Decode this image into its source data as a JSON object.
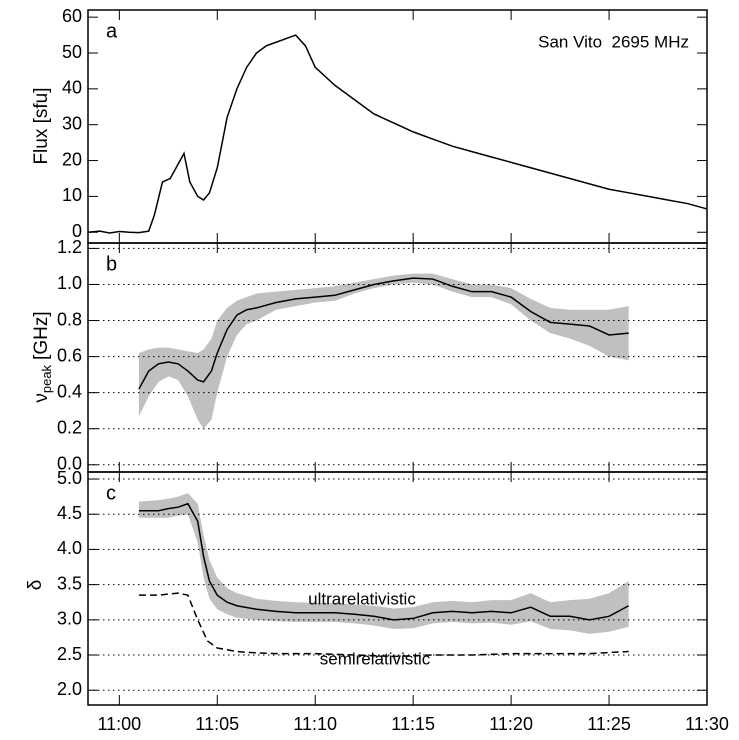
{
  "chart_data": [
    {
      "type": "line",
      "label": "a",
      "annotation": "San Vito  2695 MHz",
      "ylabel": "Flux [sfu]",
      "xlim": [
        658.4,
        690
      ],
      "xticks": [
        {
          "value": 660,
          "label": "11:00"
        },
        {
          "value": 665,
          "label": "11:05"
        },
        {
          "value": 670,
          "label": "11:10"
        },
        {
          "value": 675,
          "label": "11:15"
        },
        {
          "value": 680,
          "label": "11:20"
        },
        {
          "value": 685,
          "label": "11:25"
        },
        {
          "value": 690,
          "label": "11:30"
        }
      ],
      "ylim": [
        -3,
        62
      ],
      "yticks": [
        0,
        10,
        20,
        30,
        40,
        50,
        60
      ],
      "grid": false,
      "series": [
        {
          "color": "#000000",
          "x": [
            658.4,
            659,
            659.5,
            660,
            660.5,
            661,
            661.5,
            661.8,
            662.2,
            662.6,
            663,
            663.3,
            663.6,
            664,
            664.3,
            664.6,
            665,
            665.5,
            666,
            666.5,
            667,
            667.5,
            668,
            668.5,
            669,
            669.5,
            670,
            671,
            672,
            673,
            674,
            675,
            676,
            677,
            678,
            679,
            680,
            681,
            682,
            683,
            684,
            685,
            686,
            687,
            688,
            689,
            690
          ],
          "values": [
            0,
            0.3,
            -0.2,
            0.2,
            0,
            -0.1,
            0.3,
            5,
            14,
            15,
            19,
            22,
            14,
            10,
            9,
            11,
            18,
            32,
            40,
            46,
            50,
            52,
            53,
            54,
            55,
            52,
            46,
            41,
            37,
            33,
            30.5,
            28,
            26,
            24,
            22.5,
            21,
            19.5,
            18,
            16.5,
            15,
            13.5,
            12,
            11,
            10,
            9,
            8,
            6.5
          ]
        }
      ]
    },
    {
      "type": "line",
      "label": "b",
      "ylabel": "ν",
      "ylabel_sub": "peak",
      "ylabel_unit": "[GHz]",
      "xlim": [
        658.4,
        690
      ],
      "xticks": [
        {
          "value": 660,
          "label": "11:00"
        },
        {
          "value": 665,
          "label": "11:05"
        },
        {
          "value": 670,
          "label": "11:10"
        },
        {
          "value": 675,
          "label": "11:15"
        },
        {
          "value": 680,
          "label": "11:20"
        },
        {
          "value": 685,
          "label": "11:25"
        },
        {
          "value": 690,
          "label": "11:30"
        }
      ],
      "ylim": [
        -0.04,
        1.23
      ],
      "yticks": [
        {
          "value": 0,
          "label": "0.0"
        },
        0.2,
        0.4,
        0.6,
        0.8,
        {
          "value": 1,
          "label": "1.0"
        },
        1.2
      ],
      "grid": true,
      "band_color": "#c0c0c0",
      "series": [
        {
          "color": "#000000",
          "x": [
            661,
            661.5,
            662,
            662.5,
            663,
            663.5,
            664,
            664.3,
            664.7,
            665,
            665.5,
            666,
            666.5,
            667,
            668,
            669,
            670,
            671,
            672,
            673,
            674,
            675,
            676,
            677,
            678,
            679,
            680,
            681,
            682,
            683,
            684,
            685,
            686
          ],
          "values": [
            0.42,
            0.52,
            0.56,
            0.57,
            0.56,
            0.52,
            0.47,
            0.46,
            0.52,
            0.62,
            0.75,
            0.83,
            0.86,
            0.87,
            0.9,
            0.92,
            0.93,
            0.94,
            0.97,
            1.0,
            1.02,
            1.035,
            1.03,
            0.99,
            0.96,
            0.96,
            0.93,
            0.85,
            0.79,
            0.78,
            0.77,
            0.72,
            0.73
          ],
          "lower": [
            0.27,
            0.38,
            0.46,
            0.49,
            0.47,
            0.38,
            0.25,
            0.2,
            0.25,
            0.4,
            0.6,
            0.72,
            0.78,
            0.8,
            0.86,
            0.88,
            0.9,
            0.91,
            0.95,
            0.98,
            1.0,
            1.01,
            1.0,
            0.96,
            0.93,
            0.93,
            0.89,
            0.8,
            0.73,
            0.7,
            0.66,
            0.6,
            0.58
          ],
          "upper": [
            0.62,
            0.64,
            0.65,
            0.65,
            0.64,
            0.63,
            0.62,
            0.64,
            0.7,
            0.8,
            0.87,
            0.91,
            0.93,
            0.95,
            0.96,
            0.97,
            0.98,
            0.99,
            1.01,
            1.03,
            1.05,
            1.06,
            1.06,
            1.03,
            1.0,
            1.0,
            0.98,
            0.92,
            0.87,
            0.86,
            0.86,
            0.86,
            0.88
          ]
        }
      ]
    },
    {
      "type": "line",
      "label": "c",
      "ylabel": "δ",
      "xlim": [
        658.4,
        690
      ],
      "xticks": [
        {
          "value": 660,
          "label": "11:00"
        },
        {
          "value": 665,
          "label": "11:05"
        },
        {
          "value": 670,
          "label": "11:10"
        },
        {
          "value": 675,
          "label": "11:15"
        },
        {
          "value": 680,
          "label": "11:20"
        },
        {
          "value": 685,
          "label": "11:25"
        },
        {
          "value": 690,
          "label": "11:30"
        }
      ],
      "ylim": [
        1.79,
        5.1
      ],
      "yticks": [
        {
          "value": 2,
          "label": "2.0"
        },
        2.5,
        {
          "value": 3,
          "label": "3.0"
        },
        3.5,
        {
          "value": 4,
          "label": "4.0"
        },
        4.5,
        {
          "value": 5,
          "label": "5.0"
        }
      ],
      "grid": true,
      "band_color": "#c0c0c0",
      "series": [
        {
          "name": "ultrarelativistic",
          "color": "#000000",
          "dash": false,
          "x": [
            661,
            662,
            662.5,
            663,
            663.5,
            664,
            664.3,
            664.6,
            665,
            665.5,
            666,
            667,
            668,
            669,
            670,
            671,
            672,
            673,
            674,
            675,
            676,
            677,
            678,
            679,
            680,
            681,
            682,
            683,
            684,
            685,
            686
          ],
          "values": [
            4.55,
            4.55,
            4.58,
            4.6,
            4.65,
            4.4,
            3.9,
            3.55,
            3.35,
            3.25,
            3.2,
            3.15,
            3.12,
            3.1,
            3.1,
            3.1,
            3.08,
            3.05,
            3.0,
            3.02,
            3.1,
            3.12,
            3.1,
            3.12,
            3.1,
            3.18,
            3.05,
            3.05,
            3.0,
            3.05,
            3.2
          ],
          "lower": [
            4.45,
            4.45,
            4.45,
            4.48,
            4.5,
            4.1,
            3.6,
            3.3,
            3.15,
            3.08,
            3.03,
            3.0,
            2.98,
            2.97,
            2.97,
            2.97,
            2.95,
            2.92,
            2.87,
            2.88,
            2.95,
            2.97,
            2.95,
            2.96,
            2.93,
            2.98,
            2.87,
            2.85,
            2.8,
            2.83,
            2.9
          ],
          "upper": [
            4.68,
            4.7,
            4.72,
            4.75,
            4.8,
            4.65,
            4.2,
            3.85,
            3.6,
            3.45,
            3.38,
            3.3,
            3.27,
            3.25,
            3.24,
            3.24,
            3.22,
            3.2,
            3.16,
            3.18,
            3.25,
            3.27,
            3.25,
            3.28,
            3.28,
            3.38,
            3.25,
            3.28,
            3.3,
            3.38,
            3.55
          ]
        },
        {
          "name": "semirelativistic",
          "color": "#000000",
          "dash": true,
          "x": [
            661,
            662,
            663,
            663.5,
            664,
            664.5,
            665,
            666,
            667,
            668,
            670,
            672,
            674,
            676,
            678,
            680,
            682,
            684,
            686
          ],
          "values": [
            3.35,
            3.35,
            3.38,
            3.35,
            3.0,
            2.7,
            2.6,
            2.55,
            2.53,
            2.52,
            2.52,
            2.5,
            2.48,
            2.5,
            2.5,
            2.52,
            2.52,
            2.52,
            2.55
          ]
        }
      ]
    }
  ]
}
